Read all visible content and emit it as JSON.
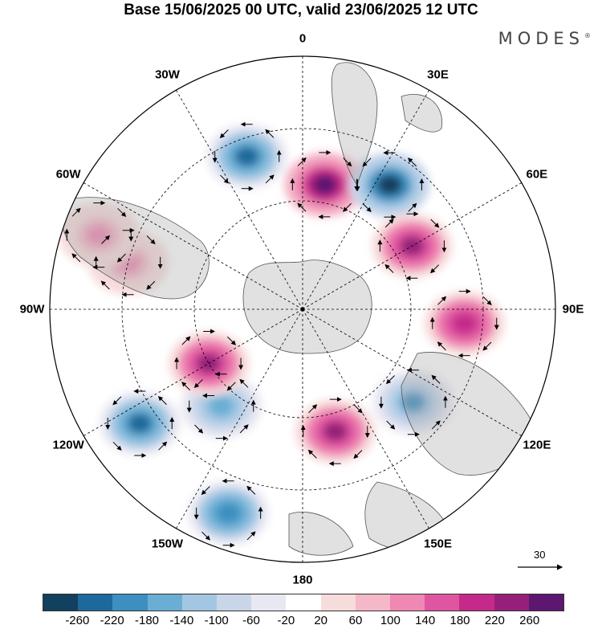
{
  "title": "Base 15/06/2025 00 UTC, valid 23/06/2025 12 UTC",
  "brand": "MODES",
  "brand_mark": "®",
  "lon_labels": [
    "0",
    "30E",
    "60E",
    "90E",
    "120E",
    "150E",
    "180",
    "150W",
    "120W",
    "90W",
    "60W",
    "30W"
  ],
  "reference_vector": {
    "value": "30"
  },
  "colorbar": {
    "colors": [
      "#12405f",
      "#1c6a9b",
      "#3c8fc0",
      "#6aaed4",
      "#a3c7e3",
      "#c9d6ea",
      "#e8e8f2",
      "#ffffff",
      "#f7dcdc",
      "#f4b8c8",
      "#ef88b2",
      "#e055a0",
      "#c52a8a",
      "#962079",
      "#5e1770"
    ],
    "ticks": [
      "-260",
      "-220",
      "-180",
      "-140",
      "-100",
      "-60",
      "-20",
      "20",
      "60",
      "100",
      "140",
      "180",
      "220",
      "260"
    ]
  },
  "chart_data": {
    "type": "heatmap",
    "projection": "north-polar-stereographic",
    "field": "anomaly",
    "anomaly_centers": [
      {
        "lon": 10,
        "lat": 55,
        "value": 240
      },
      {
        "lon": -20,
        "lat": 45,
        "value": -200
      },
      {
        "lon": 35,
        "lat": 48,
        "value": -240
      },
      {
        "lon": 60,
        "lat": 55,
        "value": 200
      },
      {
        "lon": 95,
        "lat": 45,
        "value": 180
      },
      {
        "lon": 130,
        "lat": 50,
        "value": -160
      },
      {
        "lon": 165,
        "lat": 55,
        "value": 200
      },
      {
        "lon": -160,
        "lat": 30,
        "value": -180
      },
      {
        "lon": -140,
        "lat": 55,
        "value": -140
      },
      {
        "lon": -120,
        "lat": 60,
        "value": 200
      },
      {
        "lon": -125,
        "lat": 35,
        "value": -200
      },
      {
        "lon": -75,
        "lat": 40,
        "value": 100
      },
      {
        "lon": -70,
        "lat": 30,
        "value": 100
      }
    ],
    "value_range": [
      -260,
      260
    ]
  }
}
